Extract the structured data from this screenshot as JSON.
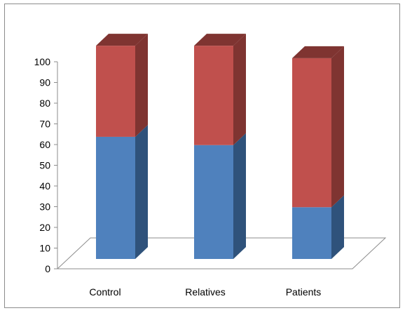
{
  "chart_data": {
    "type": "bar",
    "stacked": true,
    "three_d": true,
    "categories": [
      "Control",
      "Relatives",
      "Patients"
    ],
    "series": [
      {
        "color": "#4f81bd",
        "side_color": "#2f527b",
        "values": [
          59,
          55,
          25
        ]
      },
      {
        "color": "#c0504d",
        "side_color": "#7f3431",
        "values": [
          44,
          48,
          72
        ]
      }
    ],
    "yticks": [
      "0",
      "10",
      "20",
      "30",
      "40",
      "50",
      "60",
      "70",
      "80",
      "90",
      "100"
    ],
    "ylim": [
      0,
      100
    ],
    "grid": false,
    "legend": "none"
  }
}
